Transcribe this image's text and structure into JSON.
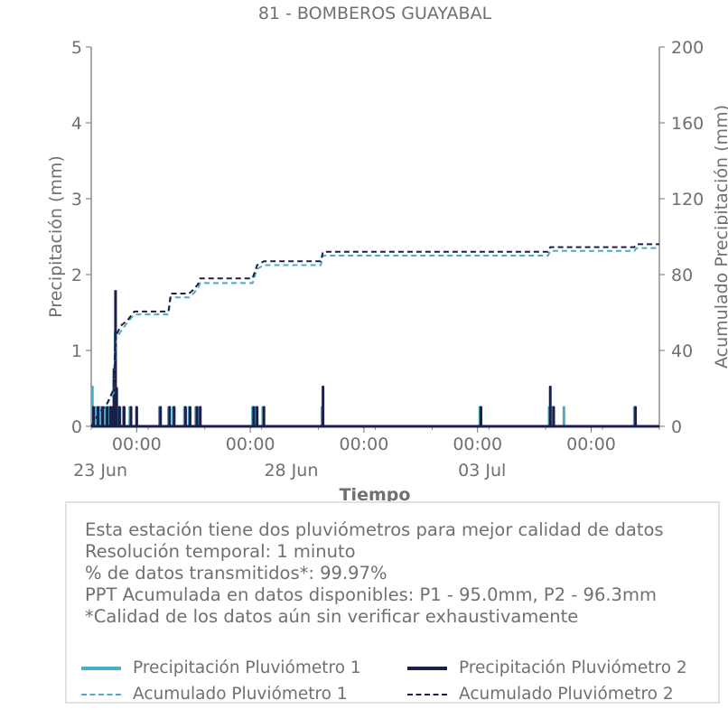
{
  "chart_data": {
    "type": "line",
    "title": "81 - BOMBEROS GUAYABAL",
    "xlabel": "Tiempo",
    "ylabel_left": "Precipitación (mm)",
    "ylabel_right": "Acumulado Precipitación (mm)",
    "ylim_left": [
      0,
      5
    ],
    "ylim_right": [
      0,
      200
    ],
    "yticks_left": [
      "0",
      "1",
      "2",
      "3",
      "4",
      "5"
    ],
    "yticks_right": [
      "0",
      "40",
      "80",
      "120",
      "160",
      "200"
    ],
    "x_range_days": [
      0,
      25
    ],
    "x_tick_times": [
      {
        "day": 2,
        "label": "00:00"
      },
      {
        "day": 7,
        "label": "00:00"
      },
      {
        "day": 12,
        "label": "00:00"
      },
      {
        "day": 17,
        "label": "00:00"
      },
      {
        "day": 22,
        "label": "00:00"
      }
    ],
    "x_tick_dates": [
      {
        "day": 0.4,
        "label": "23 Jun"
      },
      {
        "day": 8.8,
        "label": "28 Jun"
      },
      {
        "day": 17.2,
        "label": "03 Jul"
      }
    ],
    "grid": false,
    "series": [
      {
        "name": "Precipitación Pluviómetro 1",
        "color": "#4aacc5",
        "style": "solid",
        "axis": "left",
        "points": [
          [
            0.05,
            0.52
          ],
          [
            0.2,
            0.25
          ],
          [
            0.4,
            0.25
          ],
          [
            0.6,
            0.25
          ],
          [
            0.8,
            0.25
          ],
          [
            0.9,
            0.25
          ],
          [
            1.0,
            0.6
          ],
          [
            1.05,
            1.25
          ],
          [
            1.1,
            0.5
          ],
          [
            1.2,
            0.25
          ],
          [
            1.4,
            0.25
          ],
          [
            1.7,
            0.25
          ],
          [
            2.0,
            0.25
          ],
          [
            3.0,
            0.25
          ],
          [
            3.4,
            0.25
          ],
          [
            3.6,
            0.25
          ],
          [
            4.1,
            0.25
          ],
          [
            4.3,
            0.25
          ],
          [
            4.6,
            0.25
          ],
          [
            4.75,
            0.25
          ],
          [
            7.1,
            0.25
          ],
          [
            7.25,
            0.25
          ],
          [
            7.55,
            0.25
          ],
          [
            10.15,
            0.25
          ],
          [
            17.1,
            0.25
          ],
          [
            20.15,
            0.25
          ],
          [
            20.3,
            0.25
          ],
          [
            20.8,
            0.25
          ],
          [
            23.9,
            0.25
          ]
        ]
      },
      {
        "name": "Precipitación Pluviómetro 2",
        "color": "#1b1f4a",
        "style": "solid",
        "axis": "left",
        "points": [
          [
            0.1,
            0.25
          ],
          [
            0.3,
            0.25
          ],
          [
            0.5,
            0.25
          ],
          [
            0.7,
            0.25
          ],
          [
            0.85,
            0.25
          ],
          [
            0.95,
            0.25
          ],
          [
            1.0,
            0.75
          ],
          [
            1.07,
            1.78
          ],
          [
            1.12,
            0.5
          ],
          [
            1.25,
            0.25
          ],
          [
            1.45,
            0.25
          ],
          [
            1.75,
            0.25
          ],
          [
            2.0,
            0.25
          ],
          [
            3.05,
            0.25
          ],
          [
            3.45,
            0.25
          ],
          [
            3.65,
            0.25
          ],
          [
            4.15,
            0.25
          ],
          [
            4.35,
            0.25
          ],
          [
            4.65,
            0.25
          ],
          [
            4.8,
            0.25
          ],
          [
            7.15,
            0.25
          ],
          [
            7.3,
            0.25
          ],
          [
            7.6,
            0.25
          ],
          [
            10.2,
            0.52
          ],
          [
            17.15,
            0.25
          ],
          [
            20.2,
            0.52
          ],
          [
            20.35,
            0.25
          ],
          [
            23.95,
            0.25
          ]
        ]
      },
      {
        "name": "Acumulado Pluviómetro 1",
        "color": "#4aacc5",
        "style": "dashed",
        "axis": "right",
        "points": [
          [
            0,
            0
          ],
          [
            0.3,
            6
          ],
          [
            0.7,
            12
          ],
          [
            1.0,
            18
          ],
          [
            1.05,
            40
          ],
          [
            1.1,
            46
          ],
          [
            1.3,
            50
          ],
          [
            1.6,
            55
          ],
          [
            1.9,
            59
          ],
          [
            3.4,
            59
          ],
          [
            3.5,
            68
          ],
          [
            4.3,
            68
          ],
          [
            4.5,
            70
          ],
          [
            4.7,
            73
          ],
          [
            4.8,
            75.5
          ],
          [
            7.1,
            75.5
          ],
          [
            7.3,
            83
          ],
          [
            7.6,
            85
          ],
          [
            10.1,
            85
          ],
          [
            10.2,
            90
          ],
          [
            20.1,
            90
          ],
          [
            20.2,
            92.5
          ],
          [
            23.9,
            92.5
          ],
          [
            24.0,
            94
          ],
          [
            25,
            94
          ]
        ]
      },
      {
        "name": "Acumulado Pluviómetro 2",
        "color": "#1b1f4a",
        "style": "dashed",
        "axis": "right",
        "points": [
          [
            0,
            0
          ],
          [
            0.3,
            6
          ],
          [
            0.7,
            12
          ],
          [
            1.0,
            20
          ],
          [
            1.05,
            44
          ],
          [
            1.1,
            48
          ],
          [
            1.3,
            53
          ],
          [
            1.6,
            56
          ],
          [
            1.9,
            60.5
          ],
          [
            3.4,
            60.5
          ],
          [
            3.5,
            70
          ],
          [
            4.3,
            70
          ],
          [
            4.5,
            72
          ],
          [
            4.7,
            75
          ],
          [
            4.8,
            78
          ],
          [
            7.1,
            78
          ],
          [
            7.3,
            85
          ],
          [
            7.6,
            87
          ],
          [
            10.1,
            87
          ],
          [
            10.2,
            92
          ],
          [
            20.1,
            92
          ],
          [
            20.2,
            94.5
          ],
          [
            23.9,
            94.5
          ],
          [
            24.0,
            96
          ],
          [
            25,
            96
          ]
        ]
      }
    ]
  },
  "info": {
    "lines": [
      "Esta estación tiene dos pluviómetros para mejor calidad de datos",
      "Resolución temporal: 1 minuto",
      "% de datos transmitidos*: 99.97%",
      "PPT Acumulada en datos disponibles: P1 - 95.0mm, P2 - 96.3mm",
      "*Calidad de los datos aún sin verificar exhaustivamente"
    ]
  },
  "legend": {
    "items": [
      {
        "label": "Precipitación Pluviómetro 1",
        "color": "#4aacc5",
        "style": "solid"
      },
      {
        "label": "Precipitación Pluviómetro 2",
        "color": "#1b1f4a",
        "style": "solid"
      },
      {
        "label": "Acumulado Pluviómetro 1",
        "color": "#4aacc5",
        "style": "dashed"
      },
      {
        "label": "Acumulado Pluviómetro 2",
        "color": "#1b1f4a",
        "style": "dashed"
      }
    ]
  }
}
